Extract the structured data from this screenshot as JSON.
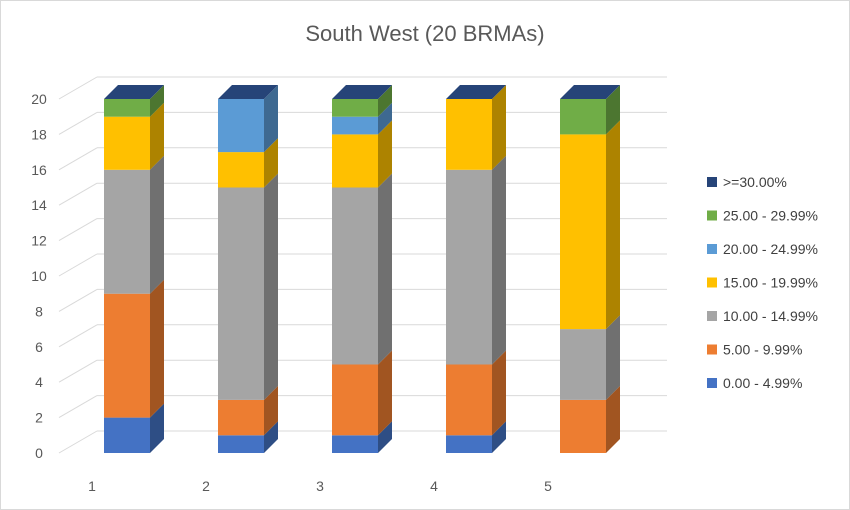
{
  "chart_data": {
    "type": "bar",
    "stacked": true,
    "style": "3d-column",
    "title": "South West (20 BRMAs)",
    "xlabel": "",
    "ylabel": "",
    "categories": [
      "1",
      "2",
      "3",
      "4",
      "5"
    ],
    "ylim": [
      0,
      20
    ],
    "yticks": [
      0,
      2,
      4,
      6,
      8,
      10,
      12,
      14,
      16,
      18,
      20
    ],
    "grid": true,
    "legend_position": "right",
    "series": [
      {
        "name": "0.00 - 4.99%",
        "color": "#4472C4",
        "values": [
          2,
          1,
          1,
          1,
          0
        ]
      },
      {
        "name": "5.00 - 9.99%",
        "color": "#ED7D31",
        "values": [
          7,
          2,
          4,
          4,
          3
        ]
      },
      {
        "name": "10.00 - 14.99%",
        "color": "#A5A5A5",
        "values": [
          7,
          12,
          10,
          11,
          4
        ]
      },
      {
        "name": "15.00 - 19.99%",
        "color": "#FFC000",
        "values": [
          3,
          2,
          3,
          4,
          11
        ]
      },
      {
        "name": "20.00 - 24.99%",
        "color": "#5B9BD5",
        "values": [
          0,
          3,
          1,
          0,
          0
        ]
      },
      {
        "name": "25.00 - 29.99%",
        "color": "#70AD47",
        "values": [
          1,
          0,
          1,
          0,
          2
        ]
      },
      {
        "name": ">=30.00%",
        "color": "#264478",
        "values": [
          0,
          0,
          0,
          0,
          0
        ]
      }
    ]
  }
}
